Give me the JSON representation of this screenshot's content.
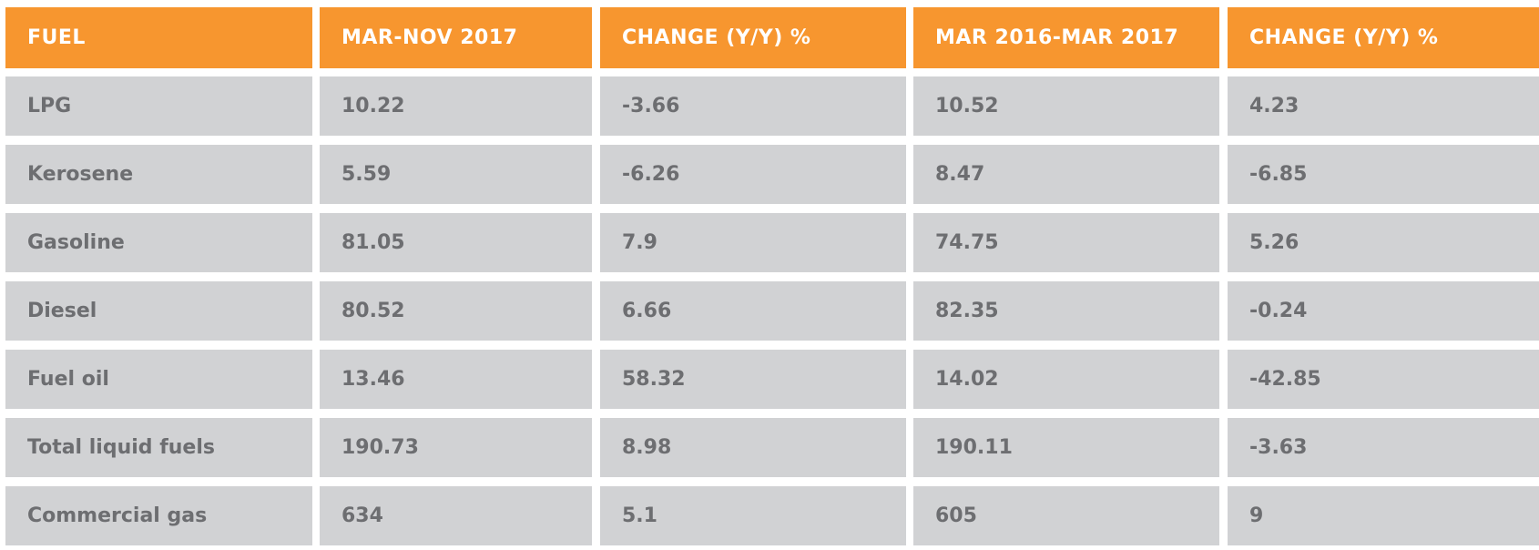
{
  "table": {
    "header": [
      "FUEL",
      "MAR-NOV 2017",
      "CHANGE (Y/Y) %",
      "MAR 2016-MAR 2017",
      "CHANGE (Y/Y) %"
    ],
    "rows": [
      [
        "LPG",
        "10.22",
        "-3.66",
        "10.52",
        "4.23"
      ],
      [
        "Kerosene",
        "5.59",
        "-6.26",
        "8.47",
        "-6.85"
      ],
      [
        "Gasoline",
        "81.05",
        "7.9",
        "74.75",
        "5.26"
      ],
      [
        "Diesel",
        "80.52",
        "6.66",
        "82.35",
        "-0.24"
      ],
      [
        "Fuel oil",
        "13.46",
        "58.32",
        "14.02",
        "-42.85"
      ],
      [
        "Total liquid fuels",
        "190.73",
        "8.98",
        "190.11",
        "-3.63"
      ],
      [
        "Commercial gas",
        "634",
        "5.1",
        "605",
        "9"
      ]
    ]
  }
}
